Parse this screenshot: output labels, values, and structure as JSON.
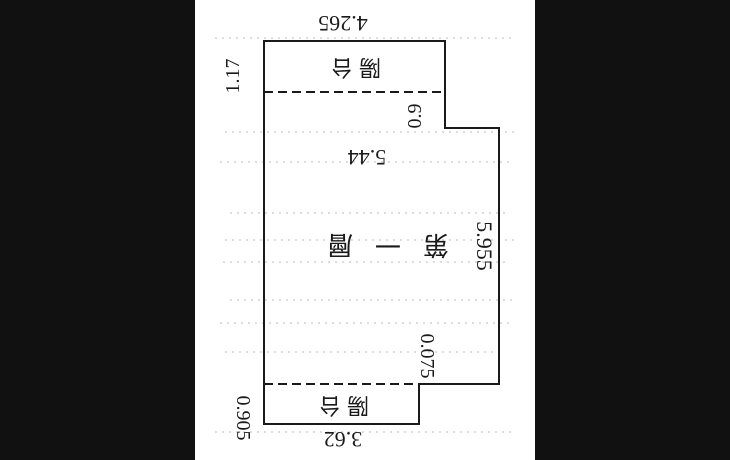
{
  "floor_plan": {
    "room_label": "第一層",
    "balcony_top_label": "陽台",
    "balcony_bottom_label": "陽台",
    "dimensions": {
      "top_width": "4.265",
      "top_balcony_depth": "1.17",
      "step_offset": "0.9",
      "interior_width": "5.44",
      "right_height": "5.955",
      "lower_offset": "0.075",
      "bottom_balcony_depth": "0.905",
      "bottom_width": "3.62"
    },
    "colors": {
      "line": "#1a1a1a",
      "background": "#ffffff",
      "side_panels": "#111111"
    }
  }
}
